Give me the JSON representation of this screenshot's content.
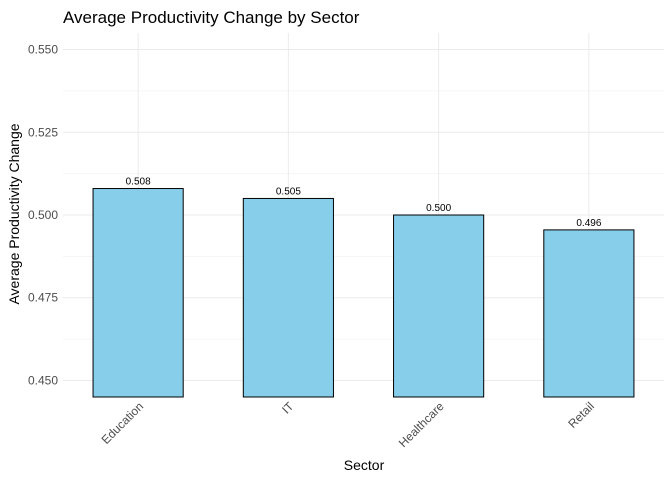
{
  "chart_data": {
    "type": "bar",
    "title": "Average Productivity Change by Sector",
    "xlabel": "Sector",
    "ylabel": "Average Productivity Change",
    "categories": [
      "Education",
      "IT",
      "Healthcare",
      "Retail"
    ],
    "values": [
      0.508,
      0.505,
      0.5,
      0.4955
    ],
    "data_labels": [
      "0.508",
      "0.505",
      "0.500",
      "0.496"
    ],
    "y_ticks": [
      0.45,
      0.475,
      0.5,
      0.525,
      0.55
    ],
    "y_tick_labels": [
      "0.450",
      "0.475",
      "0.500",
      "0.525",
      "0.550"
    ],
    "ylim": [
      0.445,
      0.555
    ],
    "grid": true,
    "x_tick_rotation": "45 degrees",
    "legend": "none"
  },
  "colors": {
    "bar_fill": "#87ceeb",
    "bar_outline": "#000000",
    "grid": "#ebebeb",
    "background": "#ffffff"
  }
}
